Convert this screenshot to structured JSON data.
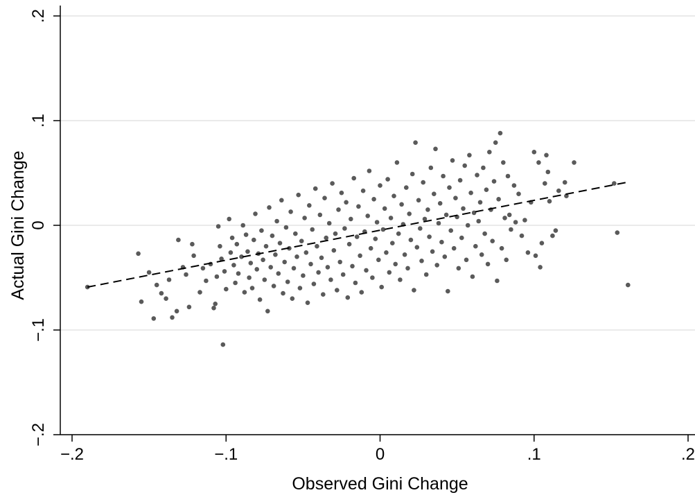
{
  "chart_data": {
    "type": "scatter",
    "title": "",
    "xlabel": "Observed Gini Change",
    "ylabel": "Actual Gini Change",
    "xlim": [
      -0.2,
      0.2
    ],
    "ylim": [
      -0.2,
      0.2
    ],
    "x_ticks": [
      -0.2,
      -0.1,
      0,
      0.1,
      0.2
    ],
    "x_tick_labels": [
      "−.2",
      "−.1",
      "0",
      ".1",
      ".2"
    ],
    "y_ticks": [
      -0.2,
      -0.1,
      0,
      0.1,
      0.2
    ],
    "y_tick_labels": [
      "−.2",
      "−.1",
      "0",
      ".1",
      ".2"
    ],
    "grid": "horizontal",
    "point_color": "#5a5a5a",
    "line_color": "#000000",
    "fit_line": {
      "style": "dashed",
      "x": [
        -0.19,
        0.16
      ],
      "y": [
        -0.059,
        0.041
      ]
    },
    "points": [
      [
        -0.19,
        -0.059
      ],
      [
        -0.157,
        -0.027
      ],
      [
        -0.155,
        -0.073
      ],
      [
        -0.15,
        -0.045
      ],
      [
        -0.147,
        -0.089
      ],
      [
        -0.145,
        -0.057
      ],
      [
        -0.142,
        -0.065
      ],
      [
        -0.139,
        -0.07
      ],
      [
        -0.137,
        -0.052
      ],
      [
        -0.135,
        -0.088
      ],
      [
        -0.132,
        -0.082
      ],
      [
        -0.131,
        -0.014
      ],
      [
        -0.128,
        -0.04
      ],
      [
        -0.126,
        -0.047
      ],
      [
        -0.124,
        -0.078
      ],
      [
        -0.122,
        -0.018
      ],
      [
        -0.121,
        -0.029
      ],
      [
        -0.117,
        -0.064
      ],
      [
        -0.115,
        -0.041
      ],
      [
        -0.113,
        -0.053
      ],
      [
        -0.11,
        -0.037
      ],
      [
        -0.108,
        -0.079
      ],
      [
        -0.107,
        -0.075
      ],
      [
        -0.106,
        -0.049
      ],
      [
        -0.105,
        -0.001
      ],
      [
        -0.104,
        -0.02
      ],
      [
        -0.103,
        -0.032
      ],
      [
        -0.102,
        -0.114
      ],
      [
        -0.101,
        -0.044
      ],
      [
        -0.1,
        -0.061
      ],
      [
        -0.098,
        0.006
      ],
      [
        -0.097,
        -0.026
      ],
      [
        -0.096,
        -0.012
      ],
      [
        -0.095,
        -0.038
      ],
      [
        -0.094,
        -0.055
      ],
      [
        -0.093,
        -0.018
      ],
      [
        -0.092,
        -0.046
      ],
      [
        -0.09,
        -0.03
      ],
      [
        -0.089,
        0.0
      ],
      [
        -0.088,
        -0.064
      ],
      [
        -0.087,
        -0.009
      ],
      [
        -0.086,
        -0.025
      ],
      [
        -0.085,
        -0.05
      ],
      [
        -0.084,
        -0.036
      ],
      [
        -0.083,
        -0.06
      ],
      [
        -0.082,
        -0.014
      ],
      [
        -0.081,
        0.011
      ],
      [
        -0.08,
        -0.042
      ],
      [
        -0.079,
        -0.027
      ],
      [
        -0.078,
        -0.071
      ],
      [
        -0.077,
        -0.005
      ],
      [
        -0.076,
        -0.033
      ],
      [
        -0.075,
        -0.052
      ],
      [
        -0.074,
        -0.02
      ],
      [
        -0.073,
        -0.082
      ],
      [
        -0.072,
        0.017
      ],
      [
        -0.071,
        -0.04
      ],
      [
        -0.07,
        -0.01
      ],
      [
        -0.069,
        -0.058
      ],
      [
        -0.068,
        -0.028
      ],
      [
        -0.067,
        0.004
      ],
      [
        -0.066,
        -0.046
      ],
      [
        -0.065,
        -0.017
      ],
      [
        -0.064,
        0.024
      ],
      [
        -0.063,
        -0.065
      ],
      [
        -0.062,
        -0.035
      ],
      [
        -0.061,
        -0.002
      ],
      [
        -0.06,
        -0.054
      ],
      [
        -0.059,
        -0.022
      ],
      [
        -0.058,
        0.013
      ],
      [
        -0.057,
        -0.07
      ],
      [
        -0.056,
        -0.041
      ],
      [
        -0.055,
        -0.008
      ],
      [
        -0.054,
        -0.03
      ],
      [
        -0.053,
        0.029
      ],
      [
        -0.052,
        -0.06
      ],
      [
        -0.051,
        -0.015
      ],
      [
        -0.05,
        -0.048
      ],
      [
        -0.049,
        0.007
      ],
      [
        -0.048,
        -0.026
      ],
      [
        -0.047,
        -0.074
      ],
      [
        -0.046,
        0.019
      ],
      [
        -0.045,
        -0.037
      ],
      [
        -0.044,
        -0.004
      ],
      [
        -0.043,
        -0.056
      ],
      [
        -0.042,
        0.035
      ],
      [
        -0.041,
        -0.02
      ],
      [
        -0.04,
        -0.045
      ],
      [
        -0.039,
        0.01
      ],
      [
        -0.038,
        -0.031
      ],
      [
        -0.037,
        -0.066
      ],
      [
        -0.036,
        0.026
      ],
      [
        -0.035,
        -0.012
      ],
      [
        -0.034,
        -0.04
      ],
      [
        -0.033,
        0.002
      ],
      [
        -0.032,
        -0.052
      ],
      [
        -0.031,
        0.04
      ],
      [
        -0.03,
        -0.024
      ],
      [
        -0.029,
        -0.008
      ],
      [
        -0.028,
        -0.062
      ],
      [
        -0.027,
        0.015
      ],
      [
        -0.026,
        -0.035
      ],
      [
        -0.025,
        0.031
      ],
      [
        -0.024,
        -0.047
      ],
      [
        -0.023,
        -0.003
      ],
      [
        -0.022,
        0.022
      ],
      [
        -0.021,
        -0.069
      ],
      [
        -0.02,
        -0.018
      ],
      [
        -0.019,
        0.006
      ],
      [
        -0.018,
        -0.039
      ],
      [
        -0.017,
        0.045
      ],
      [
        -0.016,
        -0.055
      ],
      [
        -0.015,
        -0.011
      ],
      [
        -0.014,
        0.018
      ],
      [
        -0.013,
        -0.029
      ],
      [
        -0.012,
        -0.064
      ],
      [
        -0.011,
        0.033
      ],
      [
        -0.01,
        -0.006
      ],
      [
        -0.009,
        -0.043
      ],
      [
        -0.008,
        0.009
      ],
      [
        -0.007,
        0.052
      ],
      [
        -0.006,
        -0.022
      ],
      [
        -0.005,
        -0.05
      ],
      [
        -0.004,
        0.025
      ],
      [
        -0.003,
        -0.013
      ],
      [
        -0.002,
        0.003
      ],
      [
        -0.001,
        -0.033
      ],
      [
        0.0,
        0.038
      ],
      [
        0.001,
        -0.059
      ],
      [
        0.002,
        -0.004
      ],
      [
        0.003,
        0.016
      ],
      [
        0.004,
        -0.026
      ],
      [
        0.005,
        0.044
      ],
      [
        0.006,
        -0.045
      ],
      [
        0.007,
        0.007
      ],
      [
        0.008,
        -0.017
      ],
      [
        0.009,
        0.028
      ],
      [
        0.01,
        -0.037
      ],
      [
        0.011,
        0.06
      ],
      [
        0.012,
        -0.008
      ],
      [
        0.013,
        -0.052
      ],
      [
        0.014,
        0.02
      ],
      [
        0.015,
        0.001
      ],
      [
        0.016,
        -0.028
      ],
      [
        0.017,
        0.036
      ],
      [
        0.018,
        -0.041
      ],
      [
        0.019,
        0.011
      ],
      [
        0.02,
        -0.014
      ],
      [
        0.021,
        0.049
      ],
      [
        0.022,
        -0.062
      ],
      [
        0.023,
        0.079
      ],
      [
        0.024,
        -0.021
      ],
      [
        0.025,
        0.024
      ],
      [
        0.026,
        -0.003
      ],
      [
        0.027,
        -0.034
      ],
      [
        0.028,
        0.041
      ],
      [
        0.029,
        0.006
      ],
      [
        0.03,
        -0.047
      ],
      [
        0.031,
        0.015
      ],
      [
        0.032,
        -0.011
      ],
      [
        0.033,
        0.055
      ],
      [
        0.034,
        -0.025
      ],
      [
        0.035,
        0.03
      ],
      [
        0.036,
        0.073
      ],
      [
        0.037,
        -0.038
      ],
      [
        0.038,
        0.002
      ],
      [
        0.039,
        0.021
      ],
      [
        0.04,
        -0.016
      ],
      [
        0.041,
        0.047
      ],
      [
        0.042,
        -0.03
      ],
      [
        0.043,
        0.01
      ],
      [
        0.044,
        -0.063
      ],
      [
        0.045,
        0.036
      ],
      [
        0.046,
        -0.005
      ],
      [
        0.047,
        0.062
      ],
      [
        0.048,
        -0.022
      ],
      [
        0.049,
        0.026
      ],
      [
        0.05,
        0.008
      ],
      [
        0.051,
        -0.041
      ],
      [
        0.052,
        0.043
      ],
      [
        0.053,
        -0.012
      ],
      [
        0.054,
        0.016
      ],
      [
        0.055,
        0.057
      ],
      [
        0.056,
        -0.033
      ],
      [
        0.057,
        0.0
      ],
      [
        0.058,
        0.067
      ],
      [
        0.059,
        0.031
      ],
      [
        0.06,
        -0.049
      ],
      [
        0.061,
        0.012
      ],
      [
        0.062,
        -0.02
      ],
      [
        0.063,
        0.048
      ],
      [
        0.064,
        0.004
      ],
      [
        0.065,
        0.022
      ],
      [
        0.066,
        -0.028
      ],
      [
        0.067,
        0.055
      ],
      [
        0.068,
        -0.008
      ],
      [
        0.069,
        0.034
      ],
      [
        0.07,
        -0.037
      ],
      [
        0.071,
        0.07
      ],
      [
        0.072,
        0.015
      ],
      [
        0.073,
        -0.015
      ],
      [
        0.074,
        0.042
      ],
      [
        0.075,
        0.079
      ],
      [
        0.076,
        -0.053
      ],
      [
        0.077,
        0.025
      ],
      [
        0.078,
        0.088
      ],
      [
        0.079,
        -0.022
      ],
      [
        0.08,
        0.06
      ],
      [
        0.081,
        0.007
      ],
      [
        0.082,
        -0.033
      ],
      [
        0.083,
        0.047
      ],
      [
        0.084,
        0.01
      ],
      [
        0.085,
        -0.004
      ],
      [
        0.087,
        0.038
      ],
      [
        0.088,
        0.003
      ],
      [
        0.09,
        0.03
      ],
      [
        0.092,
        -0.01
      ],
      [
        0.094,
        0.005
      ],
      [
        0.096,
        -0.026
      ],
      [
        0.098,
        0.022
      ],
      [
        0.1,
        0.07
      ],
      [
        0.101,
        -0.029
      ],
      [
        0.103,
        0.06
      ],
      [
        0.104,
        -0.04
      ],
      [
        0.105,
        -0.017
      ],
      [
        0.107,
        0.04
      ],
      [
        0.108,
        0.067
      ],
      [
        0.109,
        0.051
      ],
      [
        0.11,
        0.023
      ],
      [
        0.112,
        -0.01
      ],
      [
        0.114,
        -0.005
      ],
      [
        0.116,
        0.033
      ],
      [
        0.12,
        0.041
      ],
      [
        0.121,
        0.028
      ],
      [
        0.126,
        0.06
      ],
      [
        0.152,
        0.04
      ],
      [
        0.154,
        -0.007
      ],
      [
        0.161,
        -0.057
      ]
    ]
  }
}
